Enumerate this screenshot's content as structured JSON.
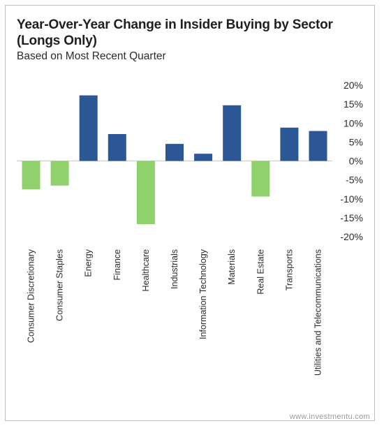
{
  "watermark": "www.investmentu.com",
  "colors": {
    "positive": "#2b5797",
    "negative": "#8fd16a",
    "axis": "#c8c8c8",
    "frame": "#bdbdbd"
  },
  "chart_data": {
    "type": "bar",
    "title": "Year-Over-Year Change in Insider Buying by Sector (Longs Only)",
    "subtitle": "Based on Most Recent Quarter",
    "xlabel": "",
    "ylabel": "",
    "ylim": [
      -20,
      20
    ],
    "yticks": [
      20,
      15,
      10,
      5,
      0,
      -5,
      -10,
      -15,
      -20
    ],
    "ytick_labels": [
      "20%",
      "15%",
      "10%",
      "5%",
      "0%",
      "-5%",
      "-10%",
      "-15%",
      "-20%"
    ],
    "grid": false,
    "legend": "none",
    "categories": [
      "Consumer Discretionary",
      "Consumer Staples",
      "Energy",
      "Finance",
      "Healthcare",
      "Industrials",
      "Information Technology",
      "Materials",
      "Real Estate",
      "Transports",
      "Utilities and Telecommunications"
    ],
    "values": [
      -7.5,
      -6.5,
      17.3,
      7.1,
      -16.7,
      4.5,
      1.9,
      14.7,
      -9.4,
      8.8,
      7.9
    ]
  }
}
